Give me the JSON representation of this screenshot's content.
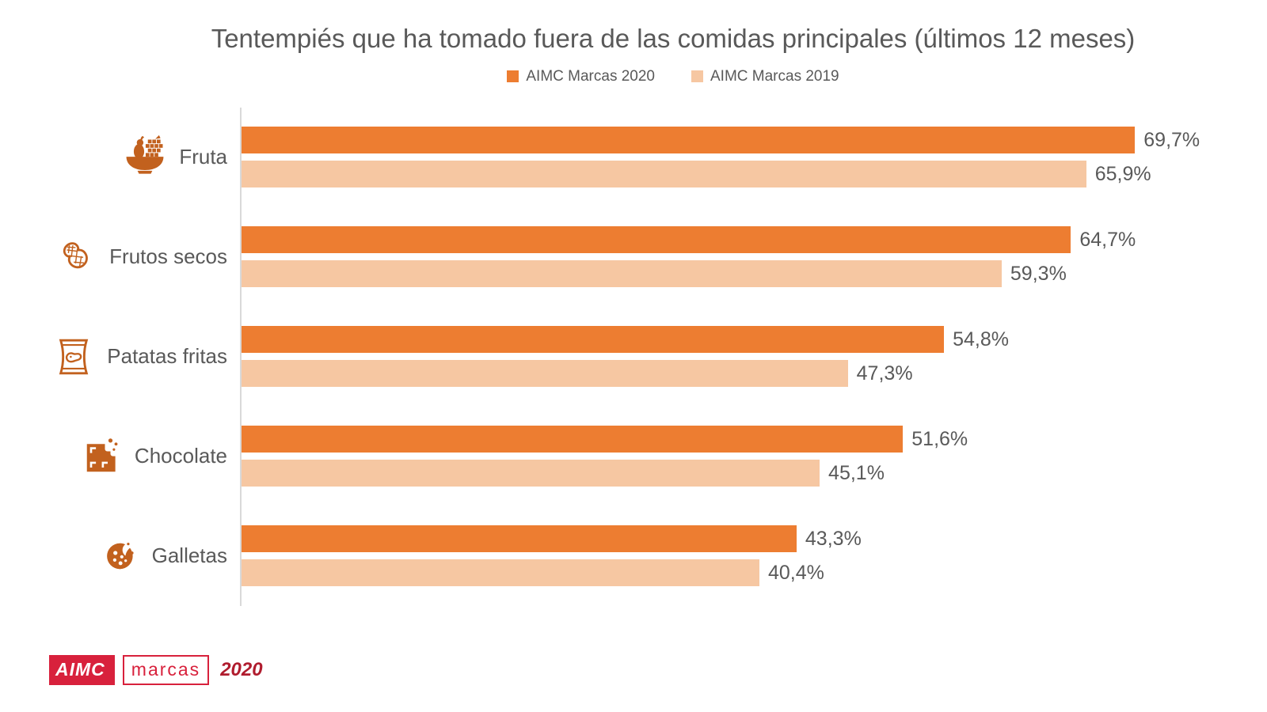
{
  "title": "Tentempiés que ha tomado fuera de las comidas principales (últimos 12 meses)",
  "legend": [
    {
      "label": "AIMC Marcas 2020",
      "color": "#ED7D31"
    },
    {
      "label": "AIMC Marcas 2019",
      "color": "#F6C7A2"
    }
  ],
  "chart_data": {
    "type": "bar",
    "orientation": "horizontal",
    "title": "Tentempiés que ha tomado fuera de las comidas principales (últimos 12 meses)",
    "categories": [
      "Fruta",
      "Frutos secos",
      "Patatas fritas",
      "Chocolate",
      "Galletas"
    ],
    "category_icons": [
      "fruit-bowl-icon",
      "peanut-icon",
      "chips-bag-icon",
      "chocolate-icon",
      "cookie-icon"
    ],
    "series": [
      {
        "name": "AIMC Marcas 2020",
        "color": "#ED7D31",
        "values": [
          69.7,
          64.7,
          54.8,
          51.6,
          43.3
        ],
        "labels": [
          "69,7%",
          "64,7%",
          "54,8%",
          "51,6%",
          "43,3%"
        ]
      },
      {
        "name": "AIMC Marcas 2019",
        "color": "#F6C7A2",
        "values": [
          65.9,
          59.3,
          47.3,
          45.1,
          40.4
        ],
        "labels": [
          "65,9%",
          "59,3%",
          "47,3%",
          "45,1%",
          "40,4%"
        ]
      }
    ],
    "xlim": [
      0,
      80
    ],
    "value_suffix": "%",
    "grid": false,
    "legend_position": "top"
  },
  "footer": {
    "logo_aimc": "AIMC",
    "logo_marcas": "marcas",
    "year": "2020"
  },
  "colors": {
    "bar_2020": "#ED7D31",
    "bar_2019": "#F6C7A2",
    "icon_orange": "#C2611E",
    "text_gray": "#595959",
    "axis_line": "#D9D9D9",
    "logo_red": "#D8213C",
    "year_red": "#B01C2E"
  }
}
